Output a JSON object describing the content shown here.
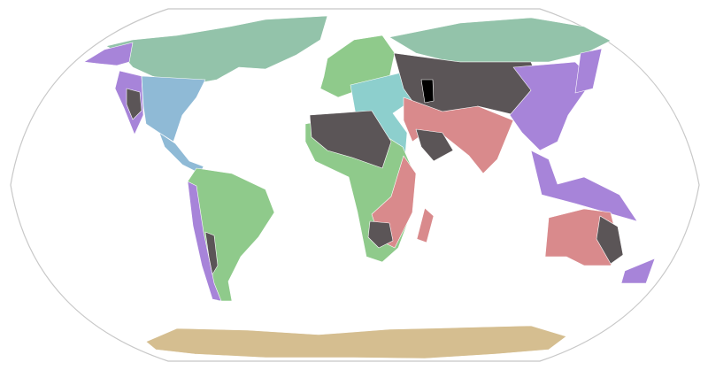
{
  "map": {
    "projection": "robinson",
    "background": "#ffffff",
    "outline_color": "#c8c8c8",
    "palette": {
      "teal": "#93c3aa",
      "purple": "#a784d9",
      "blue": "#8fbad6",
      "green": "#8fca8b",
      "cyan": "#8dcfcd",
      "dark": "#5b5557",
      "pink": "#d98a8c",
      "black": "#000000",
      "tan": "#d5be90"
    }
  }
}
